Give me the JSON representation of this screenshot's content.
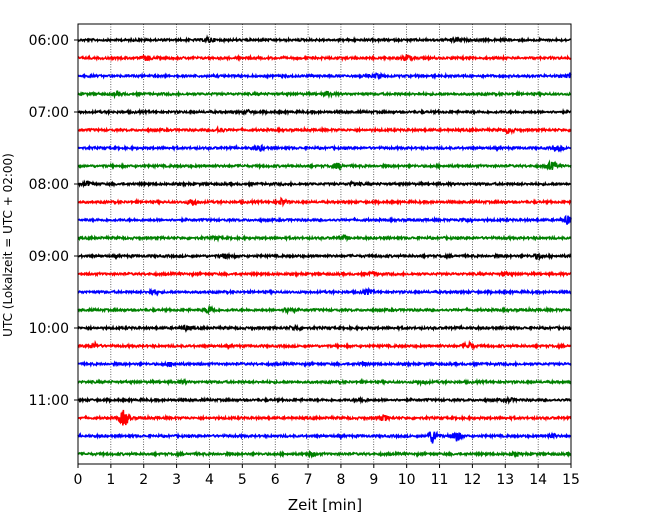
{
  "chart_data": {
    "type": "line",
    "title": "",
    "xlabel": "Zeit  [min]",
    "ylabel": "UTC (Lokalzeit = UTC + 02:00)",
    "xlim": [
      0,
      15
    ],
    "x_ticks": [
      "0",
      "1",
      "2",
      "3",
      "4",
      "5",
      "6",
      "7",
      "8",
      "9",
      "10",
      "11",
      "12",
      "13",
      "14",
      "15"
    ],
    "y_tick_labels": [
      "06:00",
      "07:00",
      "08:00",
      "09:00",
      "10:00",
      "11:00"
    ],
    "grid": "vertical-dotted",
    "trace_interval_min": 15,
    "trace_count": 24,
    "colors": [
      "#000000",
      "#ff0000",
      "#0000ff",
      "#008000"
    ],
    "traces": [
      {
        "start": "06:00",
        "color": "#000000",
        "events": [
          [
            4.0,
            0.5
          ],
          [
            11.5,
            0.4
          ]
        ]
      },
      {
        "start": "06:15",
        "color": "#ff0000",
        "events": [
          [
            2.1,
            0.5
          ],
          [
            10.0,
            0.6
          ]
        ]
      },
      {
        "start": "06:30",
        "color": "#0000ff",
        "events": [
          [
            9.1,
            0.5
          ],
          [
            15.0,
            0.6
          ]
        ]
      },
      {
        "start": "06:45",
        "color": "#008000",
        "events": [
          [
            1.2,
            0.4
          ],
          [
            7.6,
            0.5
          ]
        ]
      },
      {
        "start": "07:00",
        "color": "#000000",
        "events": [
          [
            5.2,
            0.3
          ]
        ]
      },
      {
        "start": "07:15",
        "color": "#ff0000",
        "events": [
          [
            4.3,
            0.5
          ],
          [
            13.1,
            0.6
          ]
        ]
      },
      {
        "start": "07:30",
        "color": "#0000ff",
        "events": [
          [
            5.5,
            0.6
          ],
          [
            14.6,
            0.4
          ]
        ]
      },
      {
        "start": "07:45",
        "color": "#008000",
        "events": [
          [
            7.9,
            0.6
          ],
          [
            14.4,
            0.8
          ]
        ]
      },
      {
        "start": "08:00",
        "color": "#000000",
        "events": [
          [
            0.3,
            0.5
          ],
          [
            8.4,
            0.4
          ]
        ]
      },
      {
        "start": "08:15",
        "color": "#ff0000",
        "events": [
          [
            3.5,
            0.8
          ],
          [
            6.2,
            0.7
          ]
        ]
      },
      {
        "start": "08:30",
        "color": "#0000ff",
        "events": [
          [
            11.8,
            0.4
          ],
          [
            14.9,
            1.0
          ]
        ]
      },
      {
        "start": "08:45",
        "color": "#008000",
        "events": [
          [
            4.2,
            0.3
          ],
          [
            8.1,
            0.4
          ]
        ]
      },
      {
        "start": "09:00",
        "color": "#000000",
        "events": [
          [
            4.5,
            0.5
          ],
          [
            14.0,
            0.5
          ]
        ]
      },
      {
        "start": "09:15",
        "color": "#ff0000",
        "events": [
          [
            9.0,
            0.4
          ],
          [
            13.0,
            0.3
          ]
        ]
      },
      {
        "start": "09:30",
        "color": "#0000ff",
        "events": [
          [
            2.3,
            0.4
          ],
          [
            8.8,
            0.5
          ]
        ]
      },
      {
        "start": "09:45",
        "color": "#008000",
        "events": [
          [
            4.0,
            0.8
          ],
          [
            6.4,
            0.6
          ]
        ]
      },
      {
        "start": "10:00",
        "color": "#000000",
        "events": [
          [
            3.3,
            0.5
          ],
          [
            6.6,
            0.5
          ]
        ]
      },
      {
        "start": "10:15",
        "color": "#ff0000",
        "events": [
          [
            0.5,
            0.6
          ],
          [
            11.9,
            0.7
          ]
        ]
      },
      {
        "start": "10:30",
        "color": "#0000ff",
        "events": [
          [
            2.8,
            0.4
          ],
          [
            8.7,
            0.3
          ]
        ]
      },
      {
        "start": "10:45",
        "color": "#008000",
        "events": [
          [
            3.2,
            0.3
          ],
          [
            10.5,
            0.3
          ]
        ]
      },
      {
        "start": "11:00",
        "color": "#000000",
        "events": [
          [
            8.6,
            0.4
          ],
          [
            13.1,
            0.4
          ]
        ]
      },
      {
        "start": "11:15",
        "color": "#ff0000",
        "events": [
          [
            1.4,
            1.8
          ],
          [
            9.3,
            0.6
          ]
        ]
      },
      {
        "start": "11:30",
        "color": "#0000ff",
        "events": [
          [
            10.8,
            1.6
          ],
          [
            11.5,
            1.2
          ],
          [
            14.4,
            0.5
          ]
        ]
      },
      {
        "start": "11:45",
        "color": "#008000",
        "events": [
          [
            7.1,
            0.4
          ],
          [
            13.3,
            0.3
          ]
        ]
      }
    ]
  }
}
